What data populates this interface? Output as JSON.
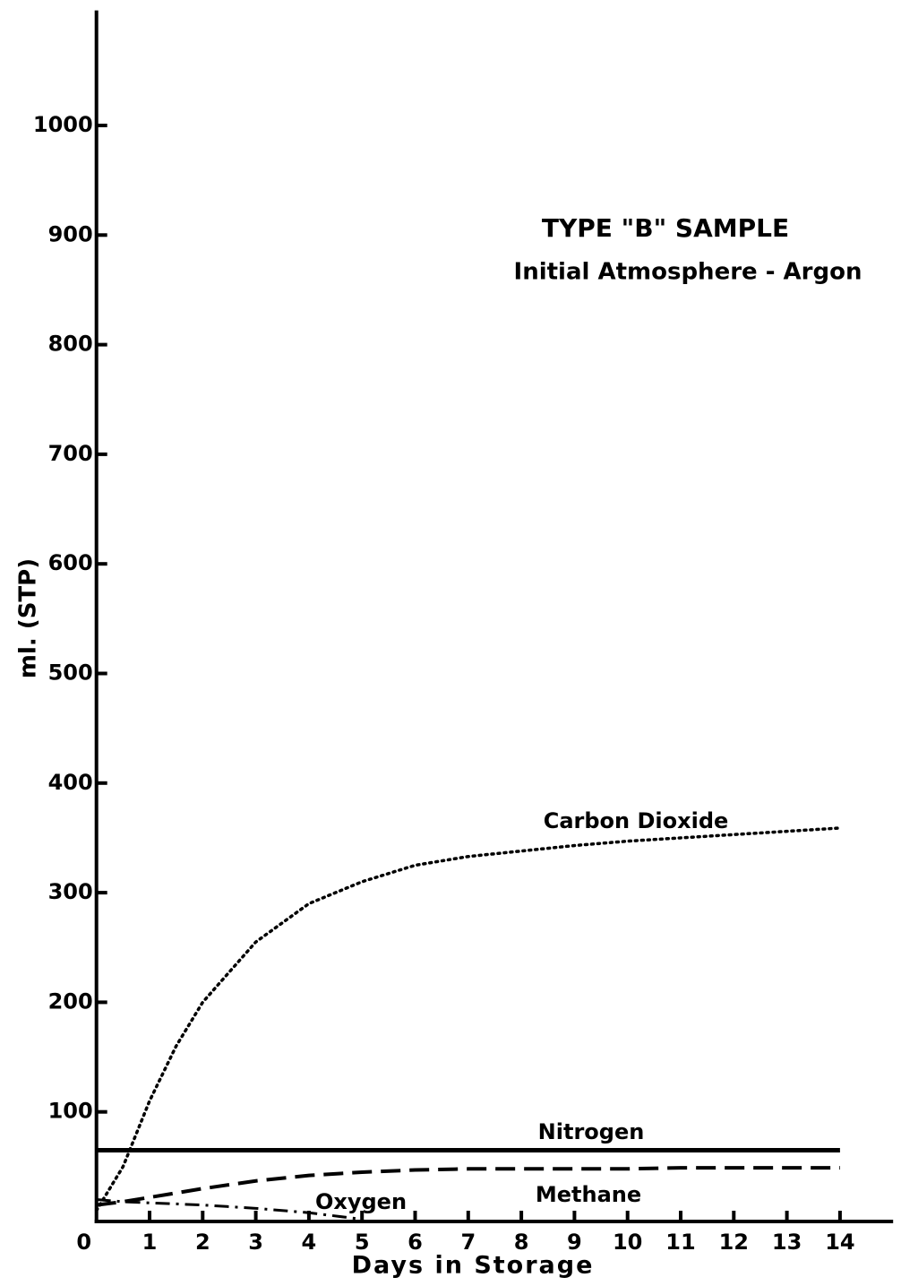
{
  "chart_data": {
    "type": "line",
    "title": "TYPE \"B\" SAMPLE",
    "subtitle": "Initial Atmosphere - Argon",
    "x_label": "Days in Storage",
    "y_label": "ml. (STP)",
    "x": [
      0,
      0.5,
      1,
      1.5,
      2,
      3,
      4,
      5,
      6,
      7,
      8,
      9,
      10,
      11,
      12,
      13,
      14
    ],
    "series": [
      {
        "name": "Carbon Dioxide",
        "color": "#000000",
        "line_style": "dotted",
        "values": [
          10,
          50,
          110,
          160,
          200,
          255,
          290,
          310,
          325,
          333,
          338,
          343,
          347,
          350,
          353,
          356,
          359
        ]
      },
      {
        "name": "Nitrogen",
        "color": "#000000",
        "line_style": "solid",
        "values": [
          65,
          65,
          65,
          65,
          65,
          65,
          65,
          65,
          65,
          65,
          65,
          65,
          65,
          65,
          65,
          65,
          65
        ]
      },
      {
        "name": "Methane",
        "color": "#000000",
        "line_style": "dashed",
        "values": [
          15,
          18,
          22,
          26,
          30,
          37,
          42,
          45,
          47,
          48,
          48,
          48,
          48,
          49,
          49,
          49,
          49
        ]
      },
      {
        "name": "Oxygen",
        "color": "#000000",
        "line_style": "dashdot",
        "values": [
          20,
          18,
          17,
          16,
          15,
          12,
          8,
          2,
          null,
          null,
          null,
          null,
          null,
          null,
          null,
          null,
          null
        ]
      }
    ],
    "xlim": [
      0,
      15
    ],
    "ylim": [
      0,
      1105
    ],
    "xticks": [
      0,
      1,
      2,
      3,
      4,
      5,
      6,
      7,
      8,
      9,
      10,
      11,
      12,
      13,
      14
    ],
    "yticks": [
      100,
      200,
      300,
      400,
      500,
      600,
      700,
      800,
      900,
      1000
    ],
    "grid": false
  }
}
